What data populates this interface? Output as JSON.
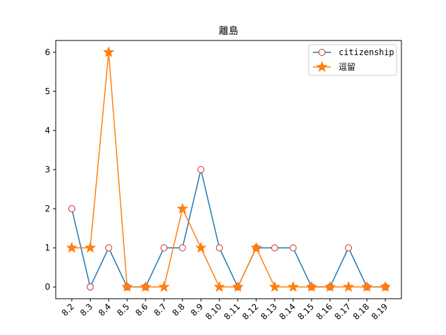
{
  "chart_data": {
    "type": "line",
    "title": "離島",
    "xlabel": "",
    "ylabel": "",
    "categories": [
      "8.2",
      "8.3",
      "8.4",
      "8.5",
      "8.6",
      "8.7",
      "8.8",
      "8.9",
      "8.10",
      "8.11",
      "8.12",
      "8.13",
      "8.14",
      "8.15",
      "8.16",
      "8.17",
      "8.18",
      "8.19"
    ],
    "ylim": [
      -0.3,
      6.3
    ],
    "yticks": [
      0,
      1,
      2,
      3,
      4,
      5,
      6
    ],
    "grid": false,
    "legend_position": "top-right",
    "series": [
      {
        "name": "citizenship",
        "color": "#1f77b4",
        "marker": "open-circle",
        "marker_edge": "#d62728",
        "values": [
          2,
          0,
          1,
          0,
          0,
          1,
          1,
          3,
          1,
          0,
          1,
          1,
          1,
          0,
          0,
          1,
          0,
          0
        ]
      },
      {
        "name": "逗留",
        "color": "#ff7f0e",
        "marker": "star",
        "values": [
          1,
          1,
          6,
          0,
          0,
          0,
          2,
          1,
          0,
          0,
          1,
          0,
          0,
          0,
          0,
          0,
          0,
          0
        ]
      }
    ]
  }
}
